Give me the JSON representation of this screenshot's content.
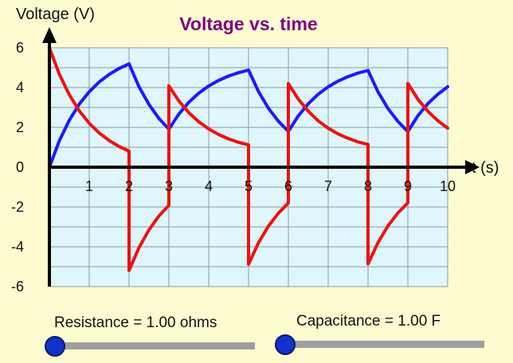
{
  "chart_data": {
    "type": "line",
    "title": "Voltage vs. time",
    "ylabel": "Voltage (V)",
    "xlabel": "t (s)",
    "xlim": [
      0,
      10
    ],
    "ylim": [
      -6,
      6
    ],
    "xticks": [
      1,
      2,
      3,
      4,
      5,
      6,
      7,
      8,
      9,
      10
    ],
    "yticks": [
      6,
      4,
      2,
      0,
      -2,
      -4,
      -6
    ],
    "grid": true,
    "series": [
      {
        "color": "#1a1aff",
        "points": [
          [
            0,
            0
          ],
          [
            0.25,
            1.33
          ],
          [
            0.5,
            2.36
          ],
          [
            0.75,
            3.17
          ],
          [
            1,
            3.79
          ],
          [
            1.25,
            4.28
          ],
          [
            1.5,
            4.66
          ],
          [
            1.75,
            4.96
          ],
          [
            2,
            5.19
          ],
          [
            2.25,
            4.04
          ],
          [
            2.5,
            3.15
          ],
          [
            2.75,
            2.45
          ],
          [
            3,
            1.91
          ],
          [
            3.25,
            2.67
          ],
          [
            3.5,
            3.26
          ],
          [
            3.75,
            3.72
          ],
          [
            4,
            4.08
          ],
          [
            4.25,
            4.36
          ],
          [
            4.5,
            4.58
          ],
          [
            4.75,
            4.75
          ],
          [
            5,
            4.88
          ],
          [
            5.25,
            3.8
          ],
          [
            5.5,
            2.96
          ],
          [
            5.75,
            2.31
          ],
          [
            6,
            1.8
          ],
          [
            6.25,
            2.58
          ],
          [
            6.5,
            3.19
          ],
          [
            6.75,
            3.67
          ],
          [
            7,
            4.04
          ],
          [
            7.25,
            4.33
          ],
          [
            7.5,
            4.55
          ],
          [
            7.75,
            4.73
          ],
          [
            8,
            4.86
          ],
          [
            8.25,
            3.79
          ],
          [
            8.5,
            2.95
          ],
          [
            8.75,
            2.3
          ],
          [
            9,
            1.79
          ],
          [
            9.25,
            2.58
          ],
          [
            9.5,
            3.19
          ],
          [
            9.75,
            3.66
          ],
          [
            10,
            4.04
          ]
        ]
      },
      {
        "color": "#ee1111",
        "points": [
          [
            0,
            6
          ],
          [
            0.25,
            4.67
          ],
          [
            0.5,
            3.64
          ],
          [
            0.75,
            2.83
          ],
          [
            1,
            2.21
          ],
          [
            1.25,
            1.72
          ],
          [
            1.5,
            1.34
          ],
          [
            1.75,
            1.04
          ],
          [
            2,
            0.81
          ],
          [
            2,
            -5.19
          ],
          [
            2.25,
            -4.04
          ],
          [
            2.5,
            -3.15
          ],
          [
            2.75,
            -2.45
          ],
          [
            3,
            -1.91
          ],
          [
            3,
            4.09
          ],
          [
            3.25,
            3.33
          ],
          [
            3.5,
            2.74
          ],
          [
            3.75,
            2.28
          ],
          [
            4,
            1.92
          ],
          [
            4.25,
            1.64
          ],
          [
            4.5,
            1.42
          ],
          [
            4.75,
            1.25
          ],
          [
            5,
            1.12
          ],
          [
            5,
            -4.88
          ],
          [
            5.25,
            -3.8
          ],
          [
            5.5,
            -2.96
          ],
          [
            5.75,
            -2.31
          ],
          [
            6,
            -1.8
          ],
          [
            6,
            4.2
          ],
          [
            6.25,
            3.42
          ],
          [
            6.5,
            2.81
          ],
          [
            6.75,
            2.33
          ],
          [
            7,
            1.96
          ],
          [
            7.25,
            1.67
          ],
          [
            7.5,
            1.45
          ],
          [
            7.75,
            1.27
          ],
          [
            8,
            1.14
          ],
          [
            8,
            -4.86
          ],
          [
            8.25,
            -3.79
          ],
          [
            8.5,
            -2.95
          ],
          [
            8.75,
            -2.3
          ],
          [
            9,
            -1.79
          ],
          [
            9,
            4.21
          ],
          [
            9.25,
            3.42
          ],
          [
            9.5,
            2.81
          ],
          [
            9.75,
            2.34
          ],
          [
            10,
            1.96
          ]
        ]
      }
    ],
    "colors": {
      "background": "#fdfcd0",
      "plot_area": "#dff6fa",
      "title": "#800080"
    }
  },
  "controls": {
    "resistance_label": "Resistance = 1.00 ohms",
    "capacitance_label": "Capacitance = 1.00 F",
    "resistance_value": 0,
    "capacitance_value": 0
  }
}
